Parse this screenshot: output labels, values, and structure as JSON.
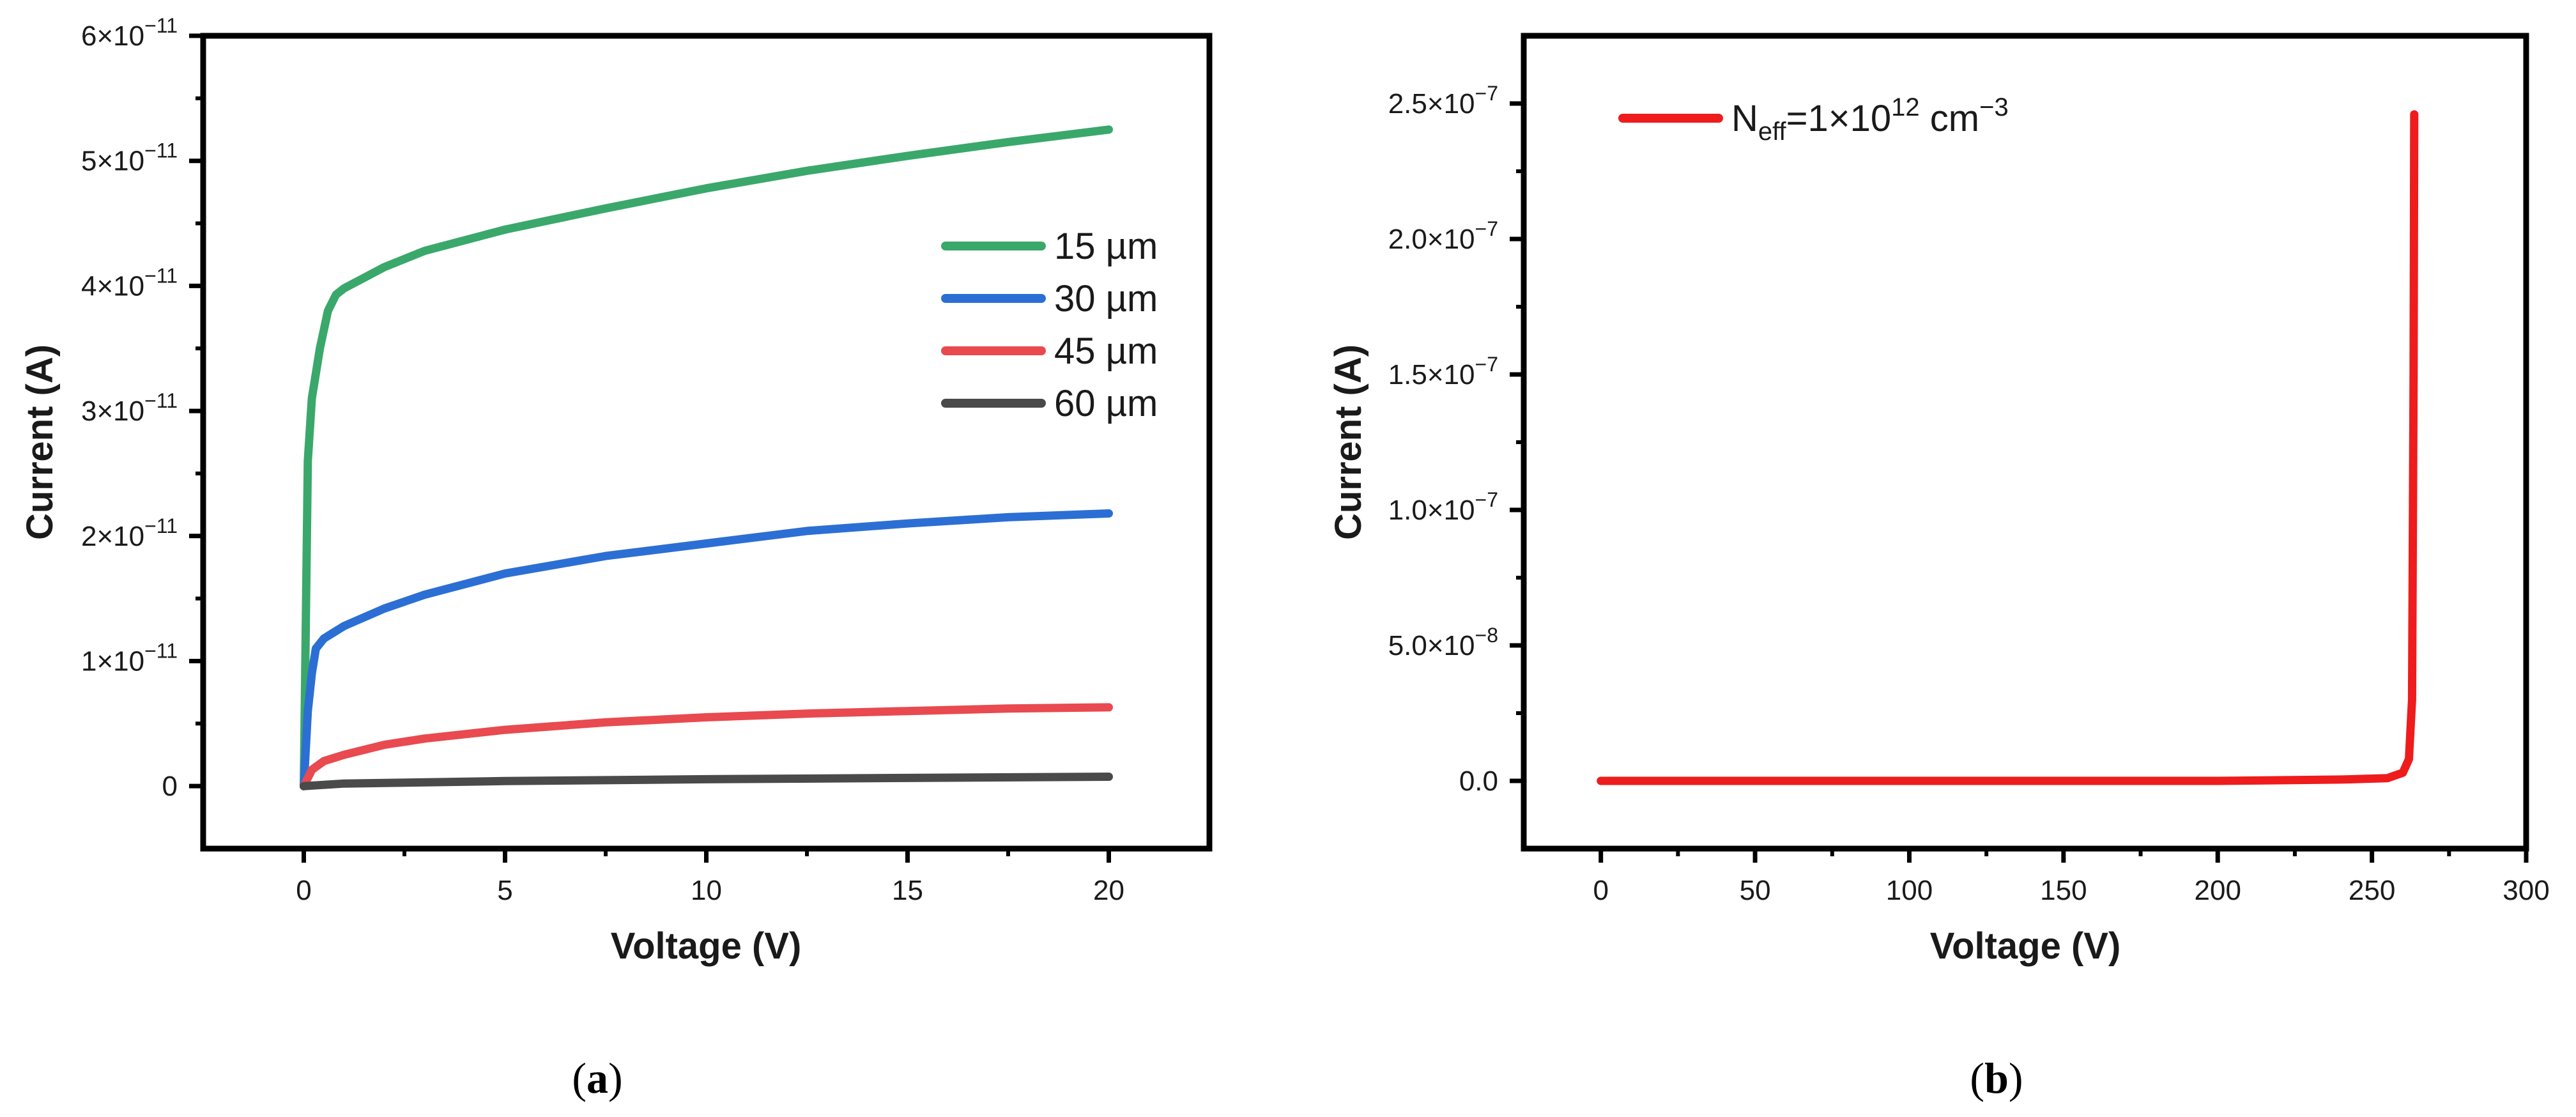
{
  "chart_data": [
    {
      "type": "line",
      "panel": "a",
      "caption_open": "(",
      "caption_letter": "a",
      "caption_close": ")",
      "xlabel": "Voltage (V)",
      "ylabel": "Current (A)",
      "xlim": [
        -2.5,
        22.5
      ],
      "ylim": [
        -5e-12,
        6e-11
      ],
      "x_ticks": [
        {
          "v": 0,
          "label": "0"
        },
        {
          "v": 5,
          "label": "5"
        },
        {
          "v": 10,
          "label": "10"
        },
        {
          "v": 15,
          "label": "15"
        },
        {
          "v": 20,
          "label": "20"
        }
      ],
      "y_ticks": [
        {
          "v": 0,
          "base": "0",
          "exp": ""
        },
        {
          "v": 1e-11,
          "base": "1×10",
          "exp": "−11"
        },
        {
          "v": 2e-11,
          "base": "2×10",
          "exp": "−11"
        },
        {
          "v": 3e-11,
          "base": "3×10",
          "exp": "−11"
        },
        {
          "v": 4e-11,
          "base": "4×10",
          "exp": "−11"
        },
        {
          "v": 5e-11,
          "base": "5×10",
          "exp": "−11"
        },
        {
          "v": 6e-11,
          "base": "6×10",
          "exp": "−11"
        }
      ],
      "legend_position": "right",
      "series": [
        {
          "name": "15 µm",
          "color": "#3aa86b",
          "x": [
            0,
            0.1,
            0.2,
            0.4,
            0.6,
            0.8,
            1,
            2,
            3,
            5,
            7.5,
            10,
            12.5,
            15,
            17.5,
            20
          ],
          "y": [
            0,
            2.6e-11,
            3.1e-11,
            3.5e-11,
            3.8e-11,
            3.93e-11,
            3.98e-11,
            4.15e-11,
            4.28e-11,
            4.45e-11,
            4.62e-11,
            4.78e-11,
            4.92e-11,
            5.04e-11,
            5.15e-11,
            5.25e-11
          ]
        },
        {
          "name": "30 µm",
          "color": "#2c6fd4",
          "x": [
            0,
            0.1,
            0.2,
            0.3,
            0.5,
            1,
            2,
            3,
            5,
            7.5,
            10,
            12.5,
            15,
            17.5,
            20
          ],
          "y": [
            0,
            6e-12,
            9e-12,
            1.1e-11,
            1.18e-11,
            1.28e-11,
            1.42e-11,
            1.53e-11,
            1.7e-11,
            1.84e-11,
            1.94e-11,
            2.04e-11,
            2.1e-11,
            2.15e-11,
            2.18e-11
          ]
        },
        {
          "name": "45 µm",
          "color": "#e84a4f",
          "x": [
            0,
            0.2,
            0.5,
            1,
            2,
            3,
            5,
            7.5,
            10,
            12.5,
            15,
            17.5,
            20
          ],
          "y": [
            0,
            1.3e-12,
            2e-12,
            2.5e-12,
            3.3e-12,
            3.8e-12,
            4.5e-12,
            5.1e-12,
            5.5e-12,
            5.8e-12,
            6e-12,
            6.2e-12,
            6.3e-12
          ]
        },
        {
          "name": "60 µm",
          "color": "#4a4a4a",
          "x": [
            0,
            0.5,
            1,
            2,
            5,
            10,
            15,
            20
          ],
          "y": [
            0,
            1e-13,
            2e-13,
            2.5e-13,
            4e-13,
            5.5e-13,
            6.5e-13,
            7.5e-13
          ]
        }
      ]
    },
    {
      "type": "line",
      "panel": "b",
      "caption_open": "(",
      "caption_letter": "b",
      "caption_close": ")",
      "xlabel": "Voltage (V)",
      "ylabel": "Current (A)",
      "xlim": [
        -25,
        300
      ],
      "ylim": [
        -2.5e-08,
        2.75e-07
      ],
      "x_ticks": [
        {
          "v": 0,
          "label": "0"
        },
        {
          "v": 50,
          "label": "50"
        },
        {
          "v": 100,
          "label": "100"
        },
        {
          "v": 150,
          "label": "150"
        },
        {
          "v": 200,
          "label": "200"
        },
        {
          "v": 250,
          "label": "250"
        },
        {
          "v": 300,
          "label": "300"
        }
      ],
      "y_ticks": [
        {
          "v": 0,
          "base": "0.0",
          "exp": ""
        },
        {
          "v": 5e-08,
          "base": "5.0×10",
          "exp": "−8"
        },
        {
          "v": 1e-07,
          "base": "1.0×10",
          "exp": "−7"
        },
        {
          "v": 1.5e-07,
          "base": "1.5×10",
          "exp": "−7"
        },
        {
          "v": 2e-07,
          "base": "2.0×10",
          "exp": "−7"
        },
        {
          "v": 2.5e-07,
          "base": "2.5×10",
          "exp": "−7"
        }
      ],
      "legend_position": "top-left",
      "legend": {
        "n": "N",
        "sub": "eff",
        "mid": "=1×10",
        "sup": "12",
        "unit": " cm",
        "unit_sup": "−3"
      },
      "series": [
        {
          "name": "Neff=1×10^12 cm^-3",
          "color": "#ee1c1c",
          "x": [
            0,
            50,
            100,
            150,
            200,
            240,
            255,
            260,
            262,
            263,
            263.5,
            263.7
          ],
          "y": [
            0,
            0,
            0,
            0,
            0,
            5e-10,
            1e-09,
            3e-09,
            8e-09,
            3e-08,
            1.5e-07,
            2.46e-07
          ]
        }
      ]
    }
  ]
}
